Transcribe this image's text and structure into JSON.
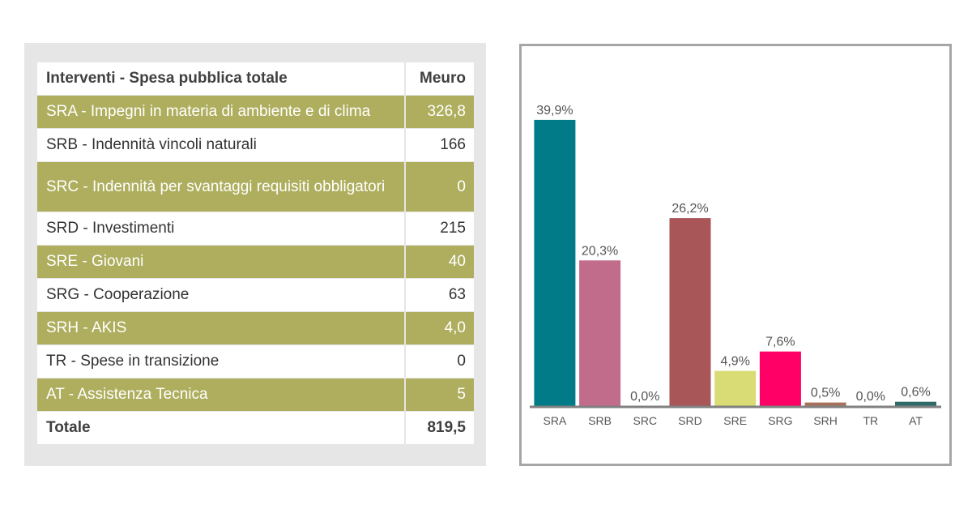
{
  "table": {
    "header": {
      "label": "Interventi - Spesa pubblica totale",
      "unit": "Meuro"
    },
    "rows": [
      {
        "label": "SRA - Impegni in materia di ambiente e di clima",
        "value": "326,8"
      },
      {
        "label": "SRB - Indennità vincoli naturali",
        "value": "166"
      },
      {
        "label": "SRC - Indennità per svantaggi requisiti obbligatori",
        "value": "0"
      },
      {
        "label": "SRD - Investimenti",
        "value": "215"
      },
      {
        "label": "SRE - Giovani",
        "value": "40"
      },
      {
        "label": "SRG - Cooperazione",
        "value": "63"
      },
      {
        "label": "SRH - AKIS",
        "value": "4,0"
      },
      {
        "label": "TR - Spese in transizione",
        "value": "0"
      },
      {
        "label": "AT - Assistenza Tecnica",
        "value": "5"
      }
    ],
    "total": {
      "label": "Totale",
      "value": "819,5"
    }
  },
  "chart_data": {
    "type": "bar",
    "categories": [
      "SRA",
      "SRB",
      "SRC",
      "SRD",
      "SRE",
      "SRG",
      "SRH",
      "TR",
      "AT"
    ],
    "values": [
      39.9,
      20.3,
      0.0,
      26.2,
      4.9,
      7.6,
      0.5,
      0.0,
      0.6
    ],
    "data_labels": [
      "39,9%",
      "20,3%",
      "0,0%",
      "26,2%",
      "4,9%",
      "7,6%",
      "0,5%",
      "0,0%",
      "0,6%"
    ],
    "colors": [
      "#007b87",
      "#c06c8a",
      "#999999",
      "#a85658",
      "#d9db75",
      "#ff0066",
      "#a7715a",
      "#999999",
      "#2e6b68"
    ],
    "title": "",
    "xlabel": "",
    "ylabel": "",
    "ylim": [
      0,
      40
    ],
    "grid": false,
    "legend": "none"
  }
}
